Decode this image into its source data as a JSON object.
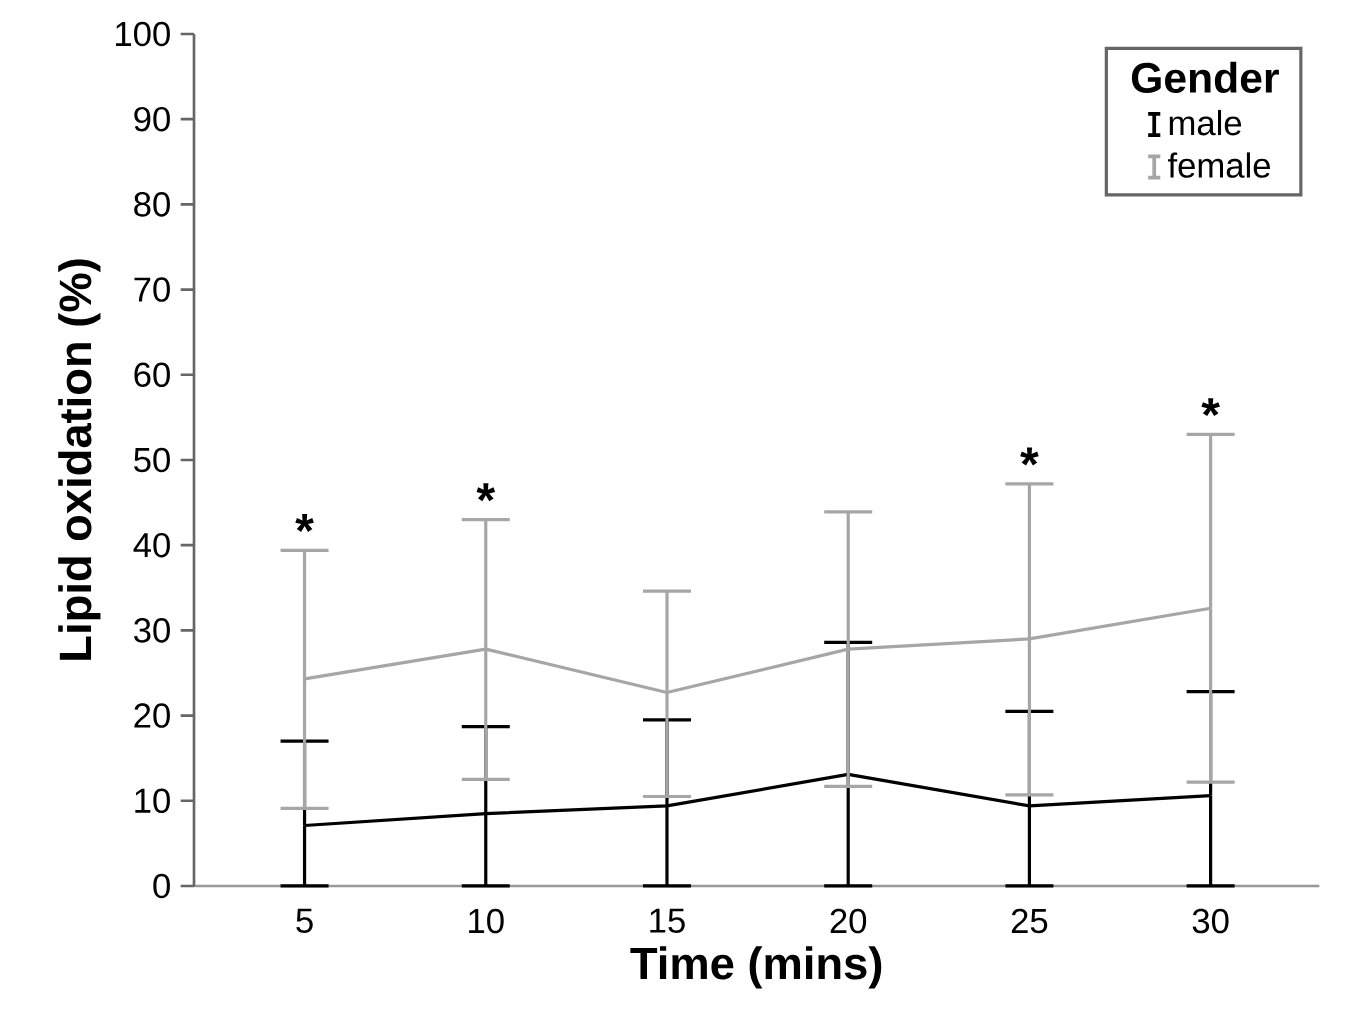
{
  "chart_data": {
    "type": "line",
    "xlabel": "Time (mins)",
    "ylabel": "Lipid oxidation (%)",
    "categories": [
      "5",
      "10",
      "15",
      "20",
      "25",
      "30"
    ],
    "series": [
      {
        "name": "male",
        "color": "#000000",
        "values": [
          7.1,
          8.5,
          9.4,
          13.1,
          9.4,
          10.6
        ],
        "errors": [
          [
            0,
            17.0
          ],
          [
            0,
            18.7
          ],
          [
            0,
            19.5
          ],
          [
            0,
            28.6
          ],
          [
            0,
            20.5
          ],
          [
            0,
            22.8
          ]
        ]
      },
      {
        "name": "female",
        "color": "#a6a6a6",
        "values": [
          24.3,
          27.8,
          22.7,
          27.8,
          29.0,
          32.6
        ],
        "errors": [
          [
            9.1,
            39.4
          ],
          [
            12.5,
            43.0
          ],
          [
            10.5,
            34.6
          ],
          [
            11.7,
            43.9
          ],
          [
            10.7,
            47.2
          ],
          [
            12.2,
            53.0
          ]
        ]
      }
    ],
    "ylim": [
      0,
      100
    ],
    "yticks": [
      0,
      10,
      20,
      30,
      40,
      50,
      60,
      70,
      80,
      90,
      100
    ],
    "legend": "top right",
    "legend_title": "Gender",
    "annotations": [
      {
        "text": "*",
        "x": "5",
        "y": 39.4
      },
      {
        "text": "*",
        "x": "10",
        "y": 43.0
      },
      {
        "text": "*",
        "x": "25",
        "y": 47.2
      },
      {
        "text": "*",
        "x": "30",
        "y": 53.0
      }
    ]
  }
}
